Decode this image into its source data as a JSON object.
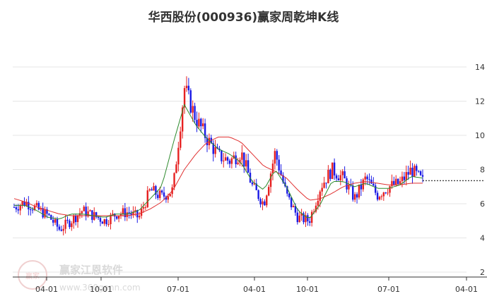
{
  "chart_data": {
    "type": "candlestick",
    "title": "华西股份(000936)赢家周乾坤K线",
    "xlabel": "",
    "ylabel": "",
    "ylim": [
      2,
      15
    ],
    "y_ticks": [
      2,
      4,
      6,
      8,
      10,
      12,
      14
    ],
    "x_ticks": [
      "04-01",
      "10-01",
      "07-01",
      "04-01",
      "10-01",
      "07-01",
      "04-01"
    ],
    "grid": true,
    "up_color": "#e62020",
    "down_color": "#1a1ae6",
    "ma_short_color": "#2e8b2e",
    "ma_long_color": "#e03030",
    "last_price": 7.35,
    "waypoints": [
      5.8,
      6.1,
      5.7,
      5.3,
      4.5,
      5.0,
      5.6,
      5.3,
      5.0,
      5.4,
      5.5,
      5.2,
      6.8,
      6.4,
      6.8,
      12.8,
      11.0,
      9.8,
      8.8,
      8.5,
      9.0,
      7.0,
      6.0,
      9.0,
      6.5,
      5.2,
      5.0,
      7.0,
      8.0,
      7.5,
      6.3,
      7.5,
      6.5,
      7.0,
      7.2,
      8.0,
      7.3
    ],
    "ma_short": [
      5.9,
      5.9,
      5.6,
      5.2,
      5.1,
      5.4,
      5.4,
      5.3,
      5.2,
      5.4,
      5.4,
      5.6,
      6.3,
      7.0,
      9.5,
      11.8,
      10.6,
      9.8,
      9.2,
      8.9,
      8.4,
      7.3,
      6.8,
      8.0,
      7.0,
      5.6,
      5.1,
      6.0,
      7.3,
      7.3,
      7.0,
      7.2,
      6.9,
      6.9,
      7.1,
      7.6,
      7.5
    ],
    "ma_long": [
      6.3,
      6.1,
      5.8,
      5.6,
      5.4,
      5.3,
      5.3,
      5.3,
      5.3,
      5.3,
      5.3,
      5.4,
      5.7,
      6.1,
      6.8,
      8.0,
      8.9,
      9.6,
      9.9,
      9.9,
      9.6,
      8.9,
      8.2,
      7.9,
      7.5,
      6.8,
      6.2,
      6.3,
      6.6,
      7.0,
      7.2,
      7.3,
      7.2,
      7.1,
      7.1,
      7.2,
      7.2
    ]
  },
  "watermark": {
    "logo_text": "赢家",
    "brand": "赢家江恩软件",
    "url": "www.360gann.com"
  }
}
